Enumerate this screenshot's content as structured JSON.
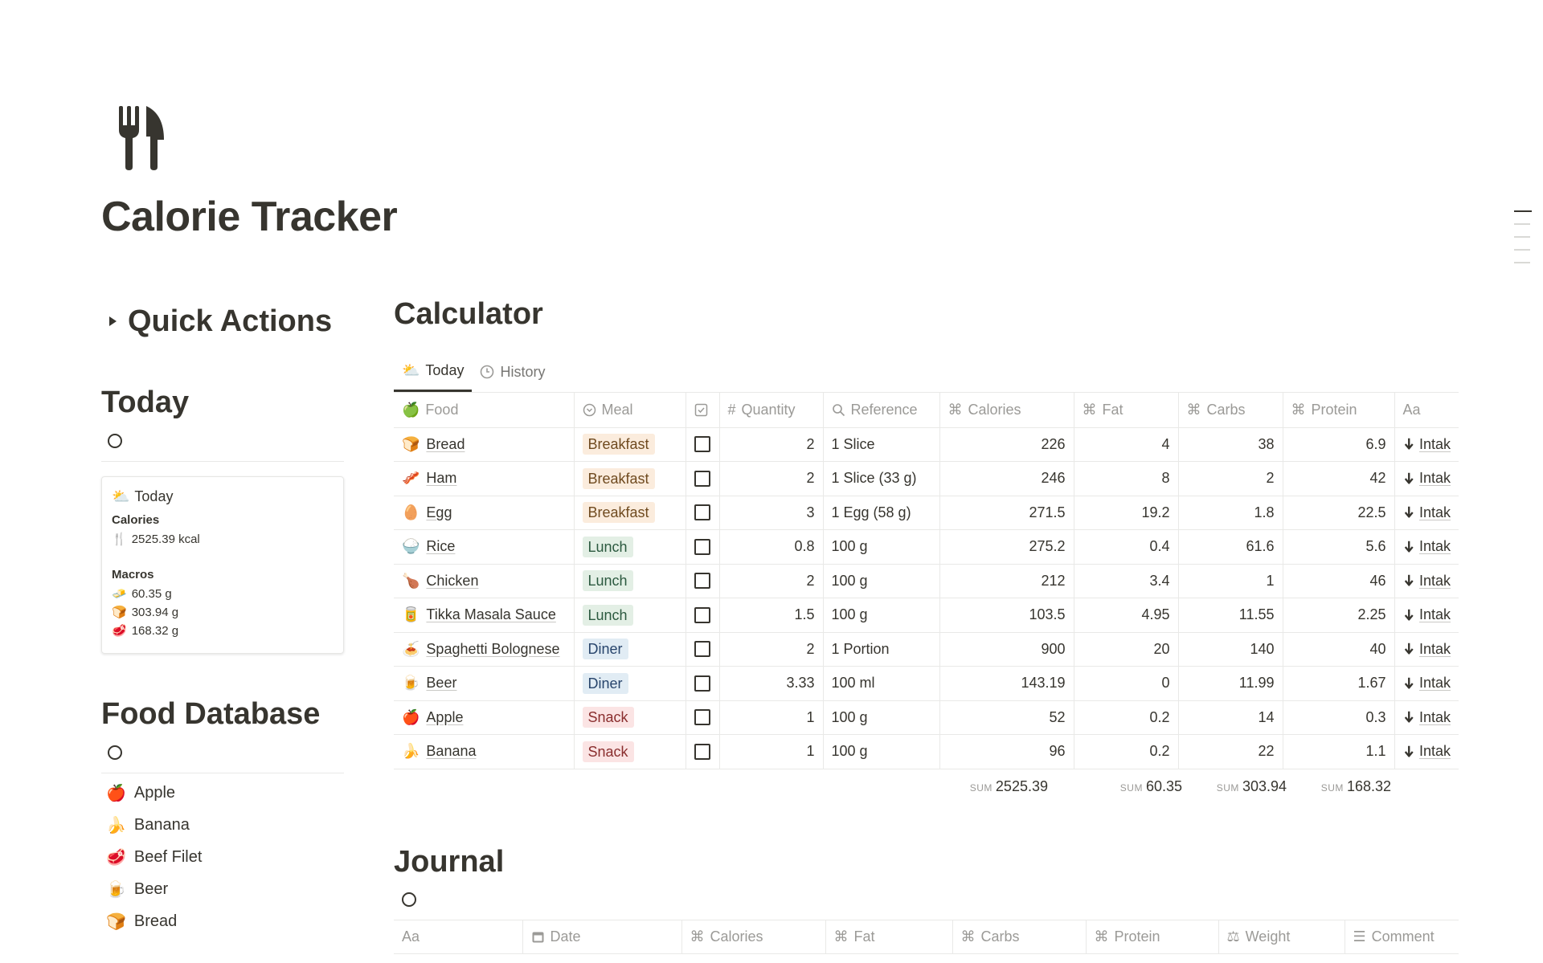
{
  "page": {
    "title": "Calorie Tracker",
    "icon": "fork-knife-icon"
  },
  "left": {
    "quick_actions": "Quick Actions",
    "today_heading": "Today",
    "today_card": {
      "title": "Today",
      "calories_label": "Calories",
      "calories_value": "2525.39 kcal",
      "macros_label": "Macros",
      "fat_value": "60.35 g",
      "carbs_value": "303.94 g",
      "protein_value": "168.32 g"
    },
    "food_db_heading": "Food Database",
    "food_db_items": [
      {
        "label": "Apple",
        "icon": "🍎"
      },
      {
        "label": "Banana",
        "icon": "🍌"
      },
      {
        "label": "Beef Filet",
        "icon": "🥩"
      },
      {
        "label": "Beer",
        "icon": "🍺"
      },
      {
        "label": "Bread",
        "icon": "🍞"
      }
    ]
  },
  "calculator": {
    "heading": "Calculator",
    "tabs": [
      {
        "label": "Today",
        "icon": "⛅",
        "active": true
      },
      {
        "label": "History",
        "icon": "clock-icon",
        "active": false
      }
    ],
    "columns": {
      "food": "Food",
      "meal": "Meal",
      "quantity": "Quantity",
      "reference": "Reference",
      "calories": "Calories",
      "fat": "Fat",
      "carbs": "Carbs",
      "protein": "Protein",
      "title": "Aa"
    },
    "rows": [
      {
        "icon": "🍞",
        "food": "Bread",
        "meal": "Breakfast",
        "quantity": "2",
        "reference": "1 Slice",
        "calories": "226",
        "fat": "4",
        "carbs": "38",
        "protein": "6.9",
        "link": "Intak"
      },
      {
        "icon": "🥓",
        "food": "Ham",
        "meal": "Breakfast",
        "quantity": "2",
        "reference": "1 Slice (33 g)",
        "calories": "246",
        "fat": "8",
        "carbs": "2",
        "protein": "42",
        "link": "Intak"
      },
      {
        "icon": "🥚",
        "food": "Egg",
        "meal": "Breakfast",
        "quantity": "3",
        "reference": "1 Egg (58 g)",
        "calories": "271.5",
        "fat": "19.2",
        "carbs": "1.8",
        "protein": "22.5",
        "link": "Intak"
      },
      {
        "icon": "🍚",
        "food": "Rice",
        "meal": "Lunch",
        "quantity": "0.8",
        "reference": "100 g",
        "calories": "275.2",
        "fat": "0.4",
        "carbs": "61.6",
        "protein": "5.6",
        "link": "Intak"
      },
      {
        "icon": "🍗",
        "food": "Chicken",
        "meal": "Lunch",
        "quantity": "2",
        "reference": "100 g",
        "calories": "212",
        "fat": "3.4",
        "carbs": "1",
        "protein": "46",
        "link": "Intak"
      },
      {
        "icon": "🥫",
        "food": "Tikka Masala Sauce",
        "meal": "Lunch",
        "quantity": "1.5",
        "reference": "100 g",
        "calories": "103.5",
        "fat": "4.95",
        "carbs": "11.55",
        "protein": "2.25",
        "link": "Intak"
      },
      {
        "icon": "🍝",
        "food": "Spaghetti Bolognese",
        "meal": "Diner",
        "quantity": "2",
        "reference": "1 Portion",
        "calories": "900",
        "fat": "20",
        "carbs": "140",
        "protein": "40",
        "link": "Intak"
      },
      {
        "icon": "🍺",
        "food": "Beer",
        "meal": "Diner",
        "quantity": "3.33",
        "reference": "100 ml",
        "calories": "143.19",
        "fat": "0",
        "carbs": "11.99",
        "protein": "1.67",
        "link": "Intak"
      },
      {
        "icon": "🍎",
        "food": "Apple",
        "meal": "Snack",
        "quantity": "1",
        "reference": "100 g",
        "calories": "52",
        "fat": "0.2",
        "carbs": "14",
        "protein": "0.3",
        "link": "Intak"
      },
      {
        "icon": "🍌",
        "food": "Banana",
        "meal": "Snack",
        "quantity": "1",
        "reference": "100 g",
        "calories": "96",
        "fat": "0.2",
        "carbs": "22",
        "protein": "1.1",
        "link": "Intak"
      }
    ],
    "sum_label": "SUM",
    "sums": {
      "calories": "2525.39",
      "fat": "60.35",
      "carbs": "303.94",
      "protein": "168.32"
    },
    "meal_colors": {
      "Breakfast": {
        "bg": "#fbecdd",
        "fg": "#6f4a1f"
      },
      "Lunch": {
        "bg": "#e3efe5",
        "fg": "#2b593f"
      },
      "Diner": {
        "bg": "#e1ecf4",
        "fg": "#28456c"
      },
      "Snack": {
        "bg": "#fbe4e4",
        "fg": "#8a2e2e"
      }
    }
  },
  "journal": {
    "heading": "Journal",
    "columns": {
      "title": "Aa",
      "date": "Date",
      "calories": "Calories",
      "fat": "Fat",
      "carbs": "Carbs",
      "protein": "Protein",
      "weight": "Weight",
      "comment": "Comment"
    }
  }
}
